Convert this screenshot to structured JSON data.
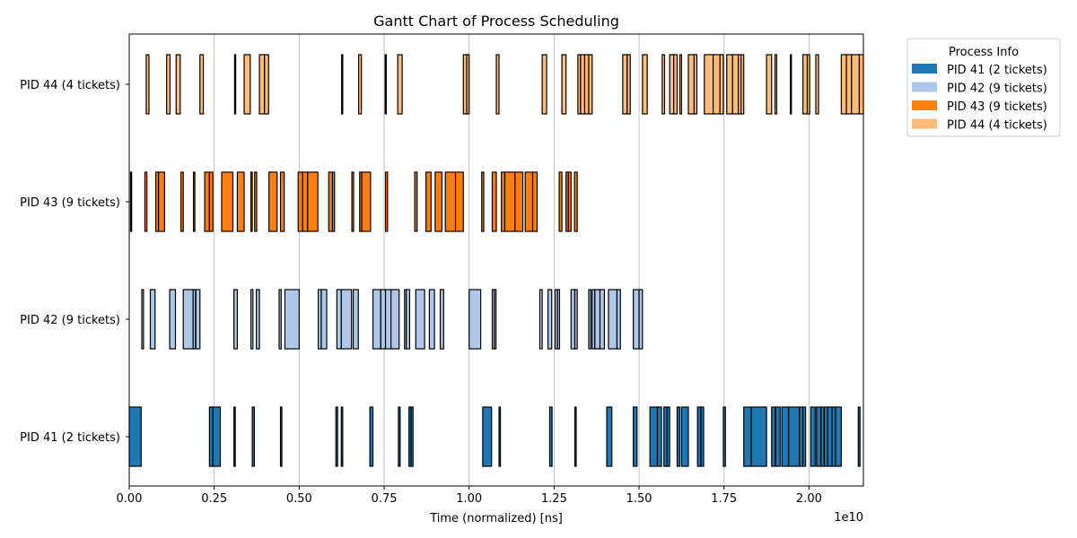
{
  "chart_data": {
    "type": "gantt",
    "title": "Gantt Chart of Process Scheduling",
    "xlabel": "Time (normalized) [ns]",
    "ylabel": "",
    "x_offset_label": "1e10",
    "xlim": [
      0,
      2.16
    ],
    "x_unit_multiplier": "1e10",
    "x_ticks": [
      "0.00",
      "0.25",
      "0.50",
      "0.75",
      "1.00",
      "1.25",
      "1.50",
      "1.75",
      "2.00"
    ],
    "x_tick_values": [
      0,
      0.25,
      0.5,
      0.75,
      1.0,
      1.25,
      1.5,
      1.75,
      2.0
    ],
    "grid": "x",
    "legend": {
      "title": "Process Info",
      "placement": "outside-top-right"
    },
    "series": [
      {
        "name": "PID 41 (2 tickets)",
        "color": "#1f77b4",
        "segments": [
          [
            0.0,
            0.035
          ],
          [
            0.236,
            0.246
          ],
          [
            0.246,
            0.268
          ],
          [
            0.308,
            0.312
          ],
          [
            0.362,
            0.368
          ],
          [
            0.445,
            0.449
          ],
          [
            0.608,
            0.613
          ],
          [
            0.624,
            0.628
          ],
          [
            0.708,
            0.717
          ],
          [
            0.792,
            0.797
          ],
          [
            0.823,
            0.829
          ],
          [
            0.829,
            0.835
          ],
          [
            1.04,
            1.066
          ],
          [
            1.088,
            1.092
          ],
          [
            1.237,
            1.244
          ],
          [
            1.311,
            1.315
          ],
          [
            1.405,
            1.42
          ],
          [
            1.483,
            1.494
          ],
          [
            1.532,
            1.554
          ],
          [
            1.554,
            1.566
          ],
          [
            1.573,
            1.582
          ],
          [
            1.582,
            1.59
          ],
          [
            1.612,
            1.62
          ],
          [
            1.625,
            1.645
          ],
          [
            1.672,
            1.682
          ],
          [
            1.682,
            1.69
          ],
          [
            1.748,
            1.754
          ],
          [
            1.808,
            1.83
          ],
          [
            1.83,
            1.875
          ],
          [
            1.89,
            1.9
          ],
          [
            1.902,
            1.915
          ],
          [
            1.92,
            1.94
          ],
          [
            1.94,
            1.972
          ],
          [
            1.972,
            1.982
          ],
          [
            1.982,
            1.99
          ],
          [
            2.005,
            2.018
          ],
          [
            2.022,
            2.035
          ],
          [
            2.035,
            2.045
          ],
          [
            2.045,
            2.055
          ],
          [
            2.055,
            2.068
          ],
          [
            2.068,
            2.078
          ],
          [
            2.078,
            2.095
          ],
          [
            2.145,
            2.15
          ]
        ]
      },
      {
        "name": "PID 42 (9 tickets)",
        "color": "#aec7e8",
        "segments": [
          [
            0.037,
            0.042
          ],
          [
            0.062,
            0.076
          ],
          [
            0.119,
            0.136
          ],
          [
            0.159,
            0.188
          ],
          [
            0.188,
            0.195
          ],
          [
            0.196,
            0.208
          ],
          [
            0.308,
            0.318
          ],
          [
            0.358,
            0.364
          ],
          [
            0.374,
            0.383
          ],
          [
            0.441,
            0.447
          ],
          [
            0.458,
            0.5
          ],
          [
            0.556,
            0.565
          ],
          [
            0.565,
            0.581
          ],
          [
            0.611,
            0.624
          ],
          [
            0.624,
            0.654
          ],
          [
            0.659,
            0.674
          ],
          [
            0.717,
            0.74
          ],
          [
            0.74,
            0.754
          ],
          [
            0.754,
            0.77
          ],
          [
            0.77,
            0.794
          ],
          [
            0.81,
            0.815
          ],
          [
            0.815,
            0.825
          ],
          [
            0.843,
            0.869
          ],
          [
            0.883,
            0.898
          ],
          [
            0.915,
            0.925
          ],
          [
            1.0,
            1.034
          ],
          [
            1.068,
            1.074
          ],
          [
            1.074,
            1.079
          ],
          [
            1.208,
            1.215
          ],
          [
            1.232,
            1.243
          ],
          [
            1.253,
            1.26
          ],
          [
            1.26,
            1.266
          ],
          [
            1.3,
            1.311
          ],
          [
            1.311,
            1.318
          ],
          [
            1.352,
            1.358
          ],
          [
            1.362,
            1.37
          ],
          [
            1.37,
            1.385
          ],
          [
            1.385,
            1.398
          ],
          [
            1.41,
            1.435
          ],
          [
            1.435,
            1.445
          ],
          [
            1.483,
            1.5
          ],
          [
            1.5,
            1.51
          ]
        ]
      },
      {
        "name": "PID 43 (9 tickets)",
        "color": "#ff7f0e",
        "segments": [
          [
            0.004,
            0.007
          ],
          [
            0.046,
            0.052
          ],
          [
            0.078,
            0.086
          ],
          [
            0.086,
            0.104
          ],
          [
            0.152,
            0.159
          ],
          [
            0.189,
            0.193
          ],
          [
            0.222,
            0.236
          ],
          [
            0.236,
            0.246
          ],
          [
            0.272,
            0.305
          ],
          [
            0.318,
            0.338
          ],
          [
            0.358,
            0.362
          ],
          [
            0.369,
            0.375
          ],
          [
            0.411,
            0.435
          ],
          [
            0.445,
            0.456
          ],
          [
            0.497,
            0.51
          ],
          [
            0.51,
            0.525
          ],
          [
            0.525,
            0.555
          ],
          [
            0.587,
            0.598
          ],
          [
            0.598,
            0.604
          ],
          [
            0.655,
            0.66
          ],
          [
            0.678,
            0.684
          ],
          [
            0.684,
            0.71
          ],
          [
            0.754,
            0.76
          ],
          [
            0.84,
            0.847
          ],
          [
            0.873,
            0.888
          ],
          [
            0.9,
            0.92
          ],
          [
            0.93,
            0.96
          ],
          [
            0.96,
            0.983
          ],
          [
            1.037,
            1.043
          ],
          [
            1.068,
            1.08
          ],
          [
            1.095,
            1.105
          ],
          [
            1.105,
            1.135
          ],
          [
            1.135,
            1.158
          ],
          [
            1.165,
            1.187
          ],
          [
            1.187,
            1.2
          ],
          [
            1.265,
            1.273
          ],
          [
            1.285,
            1.292
          ],
          [
            1.292,
            1.3
          ],
          [
            1.31,
            1.318
          ]
        ]
      },
      {
        "name": "PID 44 (4 tickets)",
        "color": "#ffbb78",
        "segments": [
          [
            0.05,
            0.058
          ],
          [
            0.11,
            0.12
          ],
          [
            0.138,
            0.15
          ],
          [
            0.208,
            0.218
          ],
          [
            0.31,
            0.312
          ],
          [
            0.338,
            0.356
          ],
          [
            0.383,
            0.398
          ],
          [
            0.398,
            0.41
          ],
          [
            0.625,
            0.627
          ],
          [
            0.675,
            0.683
          ],
          [
            0.753,
            0.755
          ],
          [
            0.79,
            0.803
          ],
          [
            0.983,
            0.993
          ],
          [
            0.993,
            1.0
          ],
          [
            1.08,
            1.088
          ],
          [
            1.215,
            1.228
          ],
          [
            1.273,
            1.285
          ],
          [
            1.32,
            1.328
          ],
          [
            1.328,
            1.34
          ],
          [
            1.34,
            1.352
          ],
          [
            1.352,
            1.362
          ],
          [
            1.452,
            1.465
          ],
          [
            1.465,
            1.474
          ],
          [
            1.51,
            1.524
          ],
          [
            1.568,
            1.575
          ],
          [
            1.59,
            1.602
          ],
          [
            1.602,
            1.612
          ],
          [
            1.62,
            1.625
          ],
          [
            1.645,
            1.662
          ],
          [
            1.662,
            1.67
          ],
          [
            1.692,
            1.718
          ],
          [
            1.718,
            1.738
          ],
          [
            1.738,
            1.748
          ],
          [
            1.758,
            1.775
          ],
          [
            1.775,
            1.792
          ],
          [
            1.792,
            1.8
          ],
          [
            1.8,
            1.808
          ],
          [
            1.875,
            1.89
          ],
          [
            1.9,
            1.905
          ],
          [
            1.945,
            1.947
          ],
          [
            1.982,
            1.995
          ],
          [
            1.995,
            2.002
          ],
          [
            2.02,
            2.028
          ],
          [
            2.095,
            2.11
          ],
          [
            2.11,
            2.125
          ],
          [
            2.125,
            2.148
          ],
          [
            2.148,
            2.16
          ]
        ]
      }
    ]
  }
}
